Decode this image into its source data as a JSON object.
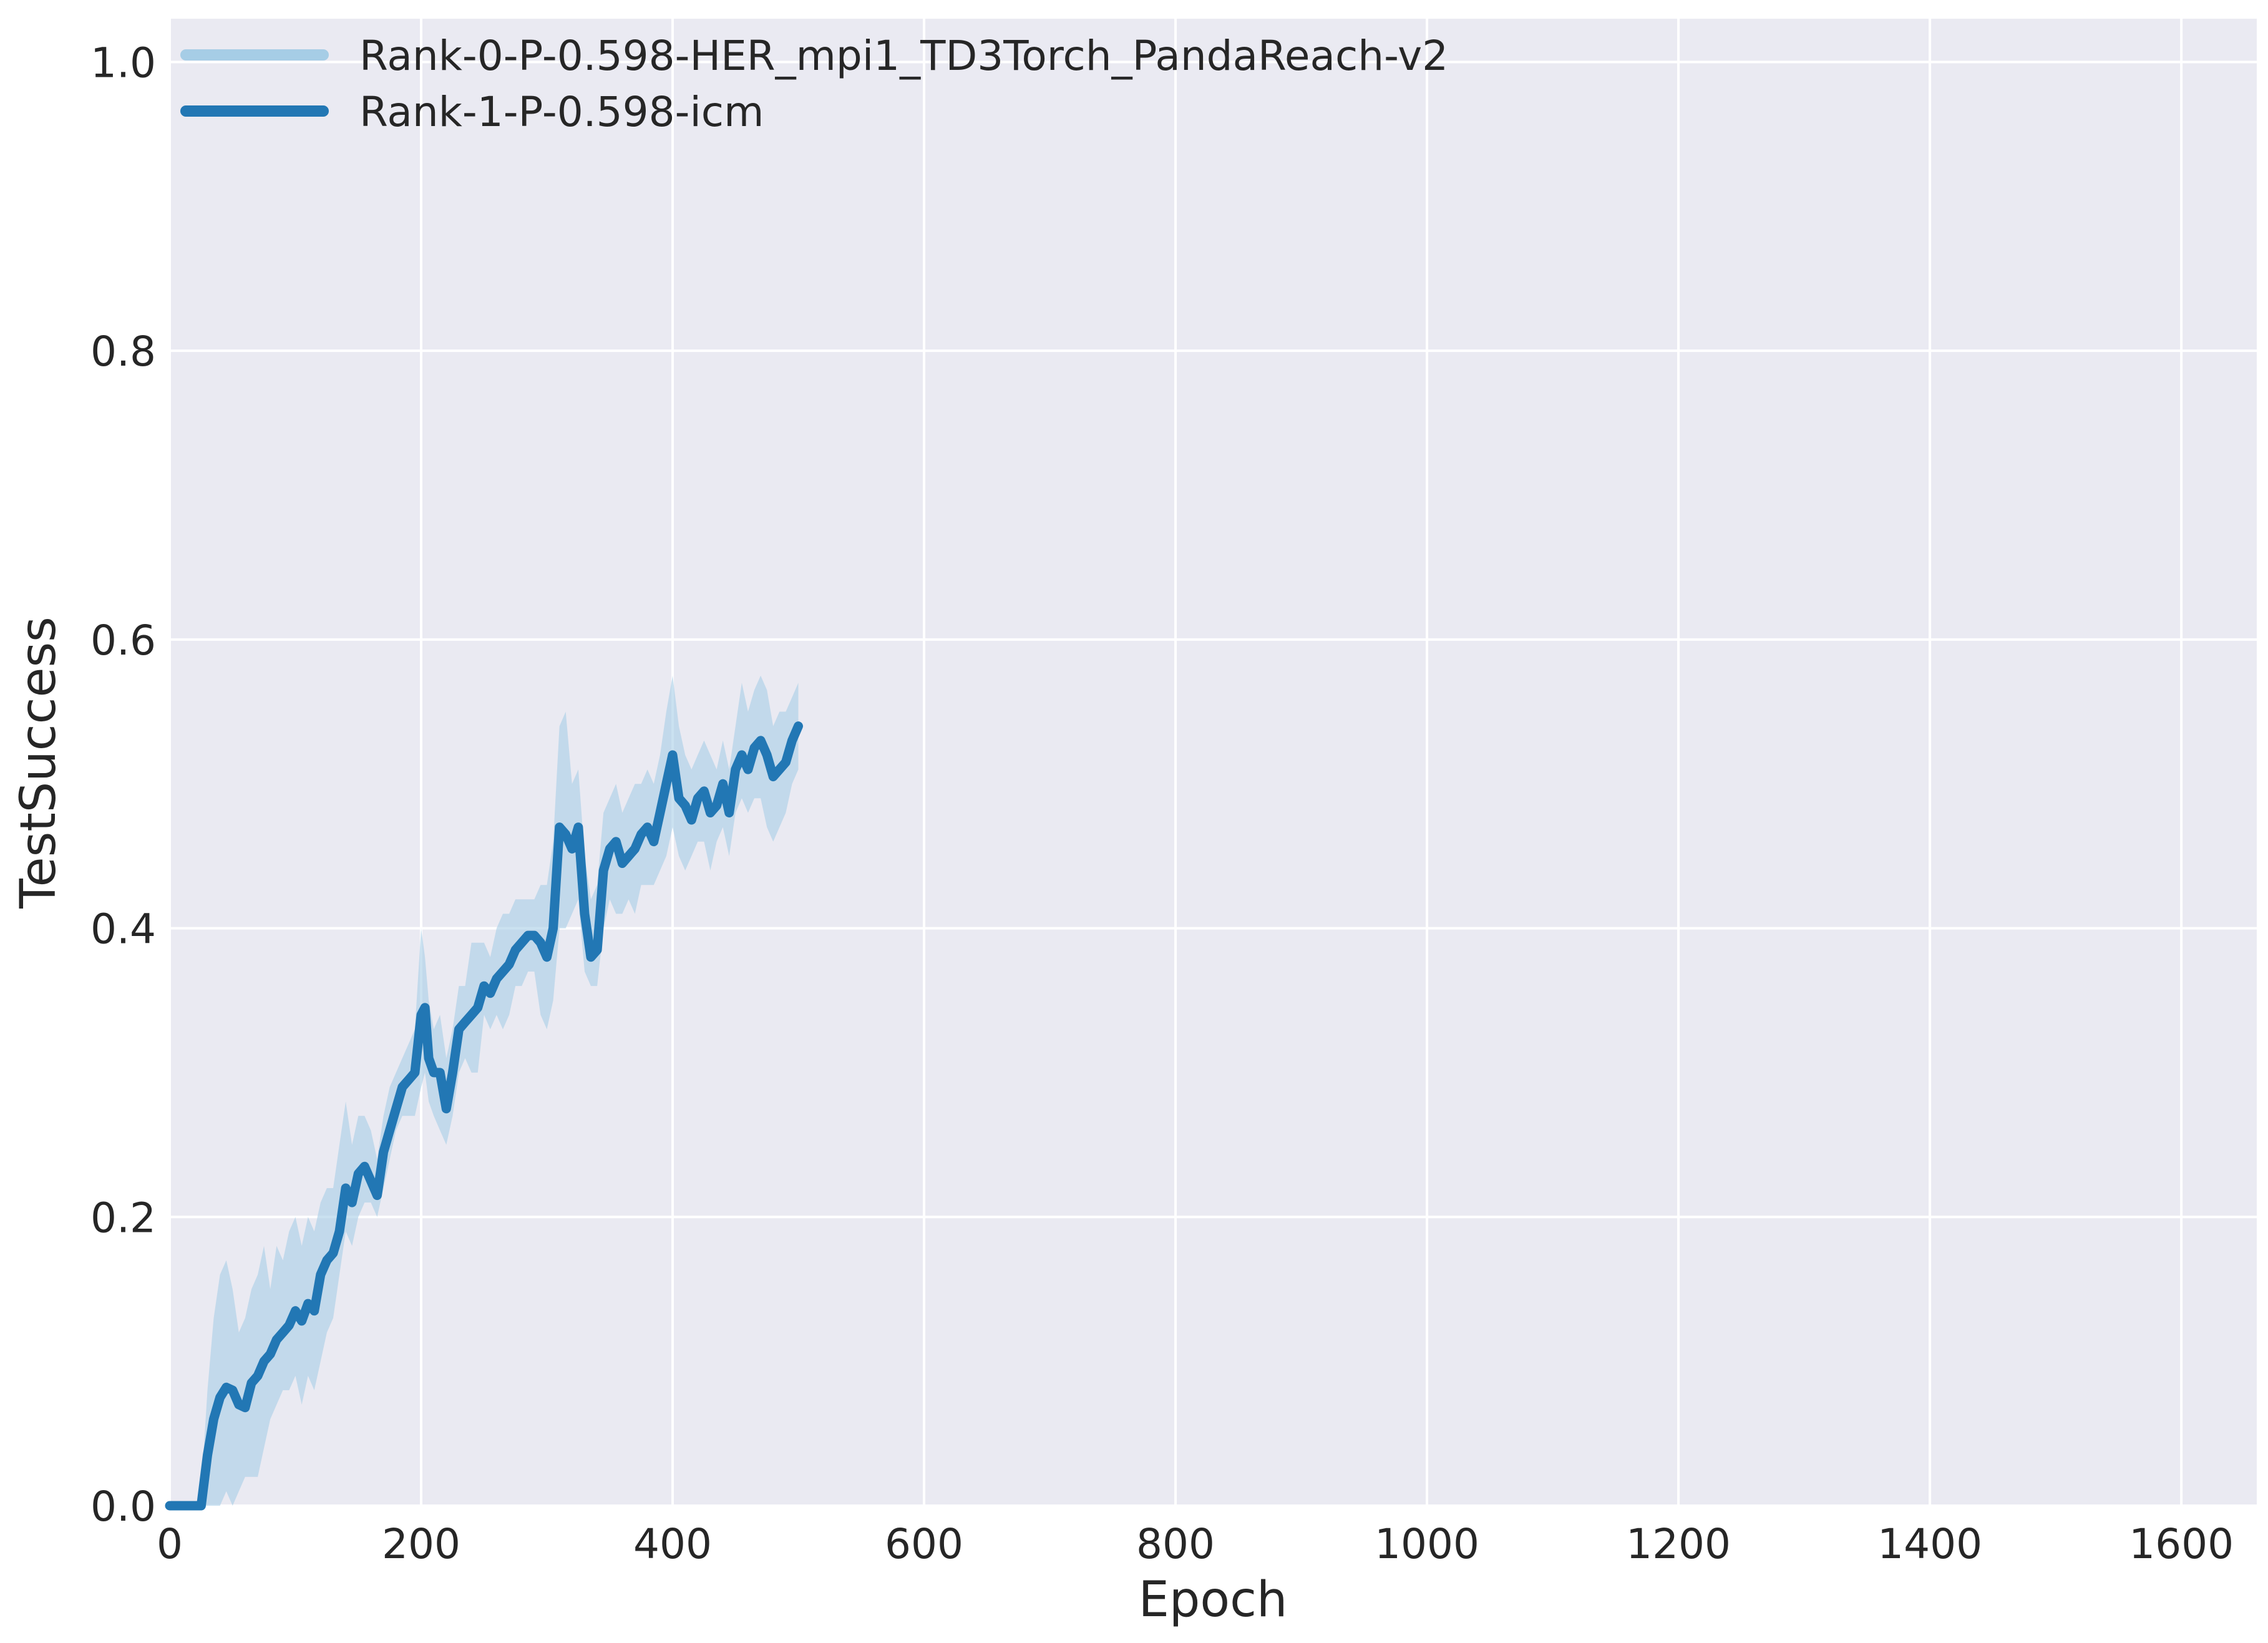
{
  "chart_data": {
    "type": "line",
    "xlabel": "Epoch",
    "ylabel": "TestSuccess",
    "xlim": [
      0,
      1660
    ],
    "ylim": [
      0.0,
      1.03
    ],
    "xticks": [
      0,
      200,
      400,
      600,
      800,
      1000,
      1200,
      1400,
      1600
    ],
    "yticks": [
      0.0,
      0.2,
      0.4,
      0.6,
      0.8,
      1.0
    ],
    "xtick_labels": [
      "0",
      "200",
      "400",
      "600",
      "800",
      "1000",
      "1200",
      "1400",
      "1600"
    ],
    "ytick_labels": [
      "0.0",
      "0.2",
      "0.4",
      "0.6",
      "0.8",
      "1.0"
    ],
    "grid": true,
    "legend_position": "top-left",
    "series": [
      {
        "name": "Rank-0-P-0.598-HER_mpi1_TD3Torch_PandaReach-v2",
        "color": "#a6cde6",
        "values": []
      },
      {
        "name": "Rank-1-P-0.598-icm",
        "color": "#2277b4",
        "band_color": "#a6cde6",
        "x": [
          0,
          10,
          20,
          25,
          30,
          35,
          40,
          45,
          50,
          55,
          60,
          65,
          70,
          75,
          80,
          85,
          90,
          95,
          100,
          105,
          110,
          115,
          120,
          125,
          130,
          135,
          140,
          145,
          150,
          155,
          160,
          165,
          170,
          175,
          180,
          185,
          190,
          195,
          200,
          203,
          206,
          210,
          215,
          220,
          225,
          230,
          235,
          240,
          245,
          250,
          255,
          260,
          265,
          270,
          275,
          280,
          285,
          290,
          295,
          300,
          305,
          310,
          315,
          320,
          325,
          330,
          335,
          340,
          345,
          350,
          355,
          360,
          365,
          370,
          375,
          380,
          385,
          390,
          395,
          400,
          405,
          410,
          415,
          420,
          425,
          430,
          435,
          440,
          445,
          450,
          455,
          460,
          465,
          470,
          475,
          480,
          485,
          490,
          495,
          500
        ],
        "values": [
          0.0,
          0.0,
          0.0,
          0.0,
          0.035,
          0.06,
          0.075,
          0.082,
          0.08,
          0.07,
          0.068,
          0.085,
          0.09,
          0.1,
          0.105,
          0.115,
          0.12,
          0.125,
          0.135,
          0.128,
          0.14,
          0.135,
          0.16,
          0.17,
          0.175,
          0.19,
          0.22,
          0.21,
          0.23,
          0.235,
          0.225,
          0.215,
          0.245,
          0.26,
          0.275,
          0.29,
          0.295,
          0.3,
          0.34,
          0.345,
          0.31,
          0.3,
          0.3,
          0.275,
          0.3,
          0.33,
          0.335,
          0.34,
          0.345,
          0.36,
          0.355,
          0.365,
          0.37,
          0.375,
          0.385,
          0.39,
          0.395,
          0.395,
          0.39,
          0.38,
          0.4,
          0.47,
          0.465,
          0.455,
          0.47,
          0.41,
          0.38,
          0.385,
          0.44,
          0.455,
          0.46,
          0.445,
          0.45,
          0.455,
          0.465,
          0.47,
          0.46,
          0.48,
          0.5,
          0.52,
          0.49,
          0.485,
          0.475,
          0.49,
          0.495,
          0.48,
          0.485,
          0.5,
          0.48,
          0.51,
          0.52,
          0.51,
          0.525,
          0.53,
          0.52,
          0.505,
          0.51,
          0.515,
          0.53,
          0.54
        ],
        "lower": [
          0.0,
          0.0,
          0.0,
          0.0,
          0.0,
          0.0,
          0.0,
          0.01,
          0.0,
          0.01,
          0.02,
          0.02,
          0.02,
          0.04,
          0.06,
          0.07,
          0.08,
          0.08,
          0.09,
          0.07,
          0.09,
          0.08,
          0.1,
          0.12,
          0.13,
          0.16,
          0.19,
          0.18,
          0.2,
          0.21,
          0.21,
          0.2,
          0.22,
          0.24,
          0.26,
          0.27,
          0.27,
          0.27,
          0.29,
          0.3,
          0.28,
          0.27,
          0.26,
          0.25,
          0.27,
          0.3,
          0.31,
          0.3,
          0.3,
          0.34,
          0.33,
          0.34,
          0.33,
          0.34,
          0.36,
          0.36,
          0.37,
          0.37,
          0.34,
          0.33,
          0.35,
          0.4,
          0.4,
          0.41,
          0.42,
          0.37,
          0.36,
          0.36,
          0.4,
          0.42,
          0.41,
          0.41,
          0.42,
          0.41,
          0.43,
          0.43,
          0.43,
          0.44,
          0.45,
          0.47,
          0.45,
          0.44,
          0.45,
          0.46,
          0.46,
          0.44,
          0.46,
          0.47,
          0.45,
          0.48,
          0.49,
          0.48,
          0.49,
          0.49,
          0.47,
          0.46,
          0.47,
          0.48,
          0.5,
          0.51
        ],
        "upper": [
          0.0,
          0.0,
          0.0,
          0.01,
          0.08,
          0.13,
          0.16,
          0.17,
          0.15,
          0.12,
          0.13,
          0.15,
          0.16,
          0.18,
          0.15,
          0.18,
          0.17,
          0.19,
          0.2,
          0.18,
          0.2,
          0.19,
          0.21,
          0.22,
          0.22,
          0.25,
          0.28,
          0.25,
          0.27,
          0.27,
          0.26,
          0.24,
          0.27,
          0.29,
          0.3,
          0.31,
          0.32,
          0.33,
          0.4,
          0.38,
          0.35,
          0.33,
          0.34,
          0.31,
          0.33,
          0.36,
          0.36,
          0.39,
          0.39,
          0.39,
          0.38,
          0.4,
          0.41,
          0.41,
          0.42,
          0.42,
          0.42,
          0.42,
          0.43,
          0.43,
          0.46,
          0.54,
          0.55,
          0.5,
          0.51,
          0.45,
          0.42,
          0.43,
          0.48,
          0.49,
          0.5,
          0.48,
          0.49,
          0.5,
          0.5,
          0.51,
          0.5,
          0.52,
          0.55,
          0.575,
          0.54,
          0.52,
          0.51,
          0.52,
          0.53,
          0.52,
          0.51,
          0.53,
          0.51,
          0.54,
          0.57,
          0.55,
          0.565,
          0.575,
          0.565,
          0.54,
          0.55,
          0.55,
          0.56,
          0.57
        ]
      }
    ]
  }
}
